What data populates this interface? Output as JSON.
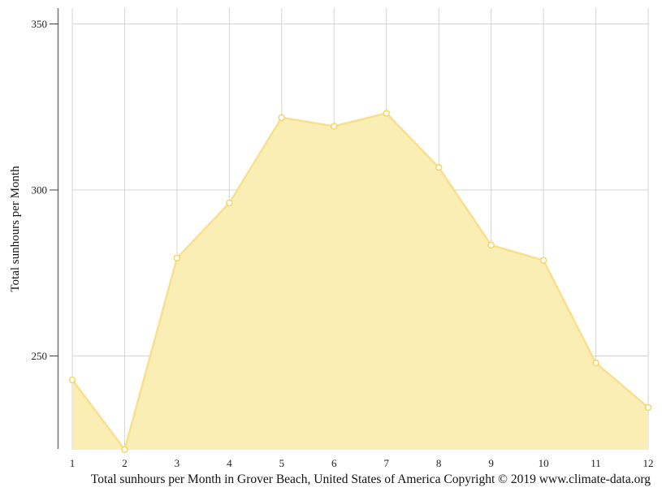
{
  "chart_data": {
    "type": "area",
    "title": "",
    "caption": "Total sunhours per Month in Grover Beach, United States of America Copyright © 2019 www.climate-data.org",
    "xlabel": "",
    "ylabel": "Total sunhours per Month",
    "categories": [
      "1",
      "2",
      "3",
      "4",
      "5",
      "6",
      "7",
      "8",
      "9",
      "10",
      "11",
      "12"
    ],
    "series": [
      {
        "name": "Total sunhours per Month",
        "values": [
          242.8,
          221.8,
          279.5,
          296.1,
          321.8,
          319.2,
          323.1,
          306.8,
          283.4,
          278.8,
          247.9,
          234.5
        ]
      }
    ],
    "yticks": [
      250,
      300,
      350
    ],
    "ylim": [
      221.5,
      354.5
    ],
    "grid": true,
    "legend": "none",
    "colors": {
      "area_fill": "#faedb0",
      "line": "#f8e08e",
      "marker_stroke": "#f5d565",
      "marker_fill": "#ffffff",
      "grid": "#d4d4d4",
      "axis": "#777777"
    }
  }
}
